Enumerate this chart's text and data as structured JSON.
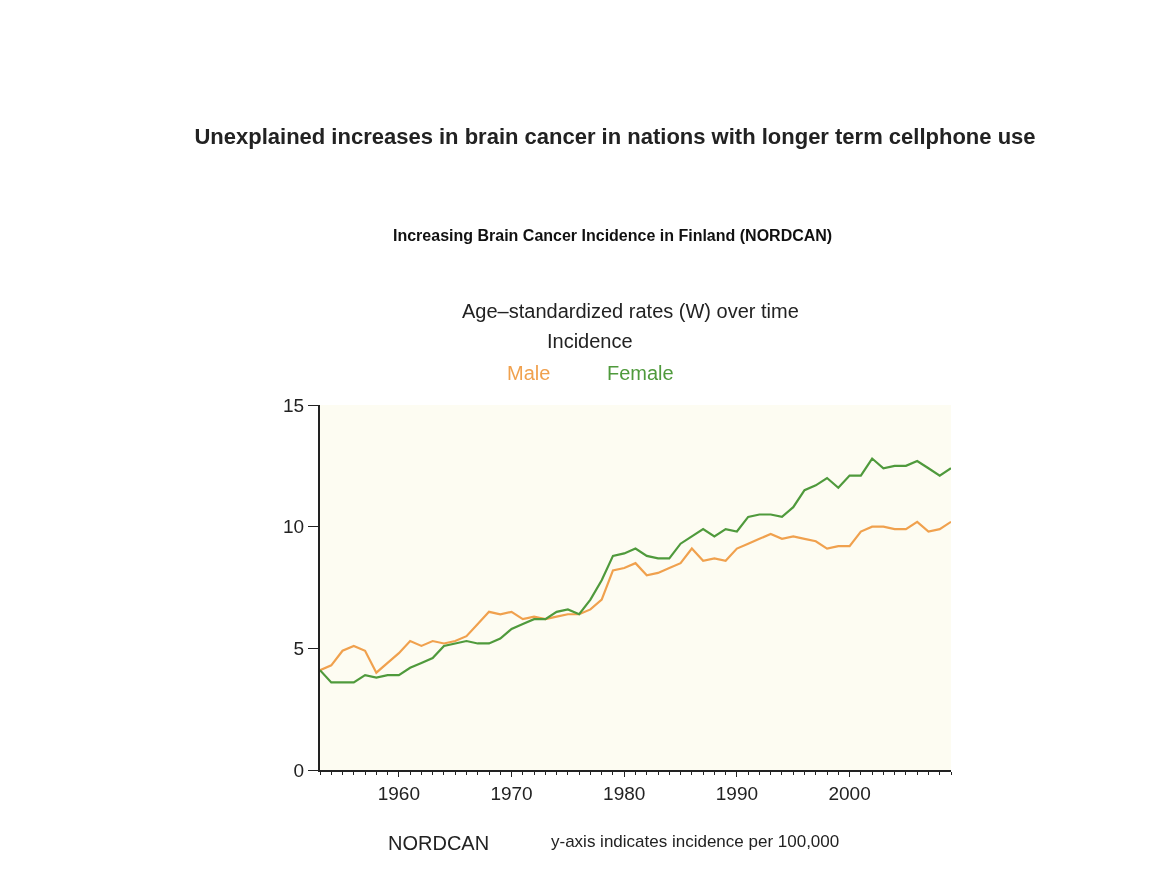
{
  "chart_data": {
    "type": "line",
    "title": "Unexplained increases in brain cancer in nations with longer term cellphone use",
    "subtitle": "Increasing Brain Cancer Incidence in Finland (NORDCAN)",
    "annotations": [
      "Age–standardized rates (W) over time",
      "Incidence",
      "NORDCAN",
      "y-axis indicates incidence per 100,000"
    ],
    "x": [
      1953,
      1954,
      1955,
      1956,
      1957,
      1958,
      1959,
      1960,
      1961,
      1962,
      1963,
      1964,
      1965,
      1966,
      1967,
      1968,
      1969,
      1970,
      1971,
      1972,
      1973,
      1974,
      1975,
      1976,
      1977,
      1978,
      1979,
      1980,
      1981,
      1982,
      1983,
      1984,
      1985,
      1986,
      1987,
      1988,
      1989,
      1990,
      1991,
      1992,
      1993,
      1994,
      1995,
      1996,
      1997,
      1998,
      1999,
      2000,
      2001,
      2002,
      2003,
      2004,
      2005,
      2006,
      2007,
      2008,
      2009
    ],
    "series": [
      {
        "name": "Male",
        "color": "#f0a14e",
        "values": [
          4.1,
          4.3,
          4.9,
          5.1,
          4.9,
          4.0,
          4.4,
          4.8,
          5.3,
          5.1,
          5.3,
          5.2,
          5.3,
          5.5,
          6.0,
          6.5,
          6.4,
          6.5,
          6.2,
          6.3,
          6.2,
          6.3,
          6.4,
          6.4,
          6.6,
          7.0,
          8.2,
          8.3,
          8.5,
          8.0,
          8.1,
          8.3,
          8.5,
          9.1,
          8.6,
          8.7,
          8.6,
          9.1,
          9.3,
          9.5,
          9.7,
          9.5,
          9.6,
          9.5,
          9.4,
          9.1,
          9.2,
          9.2,
          9.8,
          10.0,
          10.0,
          9.9,
          9.9,
          10.2,
          9.8,
          9.9,
          10.2
        ]
      },
      {
        "name": "Female",
        "color": "#4f9a3c",
        "values": [
          4.1,
          3.6,
          3.6,
          3.6,
          3.9,
          3.8,
          3.9,
          3.9,
          4.2,
          4.4,
          4.6,
          5.1,
          5.2,
          5.3,
          5.2,
          5.2,
          5.4,
          5.8,
          6.0,
          6.2,
          6.2,
          6.5,
          6.6,
          6.4,
          7.0,
          7.8,
          8.8,
          8.9,
          9.1,
          8.8,
          8.7,
          8.7,
          9.3,
          9.6,
          9.9,
          9.6,
          9.9,
          9.8,
          10.4,
          10.5,
          10.5,
          10.4,
          10.8,
          11.5,
          11.7,
          12.0,
          11.6,
          12.1,
          12.1,
          12.8,
          12.4,
          12.5,
          12.5,
          12.7,
          12.4,
          12.1,
          12.4
        ]
      }
    ],
    "xlim": [
      1953,
      2009
    ],
    "xticks": [
      1960,
      1970,
      1980,
      1990,
      2000
    ],
    "ylim": [
      0,
      15
    ],
    "yticks": [
      0,
      5,
      10,
      15
    ],
    "grid": false,
    "legend": false,
    "marker": "none",
    "line_style": "solid"
  }
}
